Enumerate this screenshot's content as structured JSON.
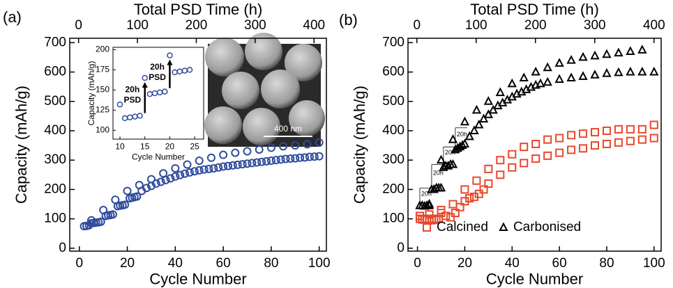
{
  "chart_data": [
    {
      "type": "scatter",
      "panel_label": "(a)",
      "xlabel": "Cycle Number",
      "ylabel": "Capacity (mAh/g)",
      "x2label": "Total PSD Time (h)",
      "xlim": [
        -4,
        103
      ],
      "xticks": [
        0,
        20,
        40,
        60,
        80,
        100
      ],
      "ylim": [
        -10,
        715
      ],
      "yticks": [
        0,
        100,
        200,
        300,
        400,
        500,
        600,
        700
      ],
      "x2lim": [
        -15,
        421
      ],
      "x2ticks": [
        0,
        100,
        200,
        300,
        400
      ],
      "series": [
        {
          "color": "#2f4b9c",
          "marker": "circle",
          "x": [
            2,
            3,
            4,
            5,
            6,
            7,
            8,
            9,
            11,
            12,
            13,
            14,
            16,
            17,
            18,
            19,
            21,
            22,
            23,
            24,
            26,
            28,
            30,
            32,
            34,
            36,
            38,
            40,
            42,
            44,
            46,
            48,
            50,
            52,
            54,
            56,
            58,
            60,
            62,
            64,
            66,
            68,
            70,
            72,
            74,
            76,
            78,
            80,
            82,
            84,
            86,
            88,
            90,
            92,
            94,
            96,
            98,
            100
          ],
          "values": [
            75,
            76,
            78,
            85,
            86,
            87,
            88,
            90,
            110,
            112,
            113,
            115,
            143,
            145,
            146,
            148,
            170,
            172,
            174,
            176,
            195,
            205,
            212,
            220,
            226,
            232,
            238,
            244,
            249,
            254,
            258,
            262,
            265,
            268,
            270,
            272,
            275,
            278,
            280,
            282,
            284,
            286,
            288,
            290,
            292,
            294,
            296,
            298,
            300,
            302,
            304,
            305,
            306,
            308,
            309,
            311,
            312,
            313
          ]
        },
        {
          "color": "#2f4b9c",
          "marker": "circle",
          "x": [
            5,
            10,
            15,
            20,
            25,
            30,
            35,
            40,
            45,
            50,
            55,
            60,
            65,
            70,
            75,
            80,
            85,
            90,
            95,
            100
          ],
          "values": [
            95,
            130,
            165,
            195,
            215,
            235,
            255,
            272,
            285,
            298,
            308,
            318,
            325,
            330,
            336,
            342,
            347,
            350,
            354,
            360
          ]
        }
      ],
      "inset": {
        "type": "scatter",
        "xlabel": "Cycle Number",
        "ylabel": "Capacity (mAh/g)",
        "xlim": [
          8.6,
          26.8
        ],
        "xticks": [
          10,
          15,
          20,
          25
        ],
        "ylim": [
          89,
          203
        ],
        "yticks": [
          100,
          125,
          150,
          175,
          200
        ],
        "series": [
          {
            "color": "#2f4b9c",
            "marker": "circle",
            "x": [
              10,
              11,
              12,
              13,
              14,
              15,
              16,
              17,
              18,
              19,
              20,
              21,
              22,
              23,
              24
            ],
            "values": [
              132,
              115,
              116,
              117,
              118,
              165,
              145,
              146,
              147,
              148,
              193,
              172,
              173,
              174,
              175
            ]
          }
        ],
        "annotations": [
          [
            "20h",
            "PSD"
          ],
          [
            "20h",
            "PSD"
          ]
        ]
      },
      "scale_bar_label": "400 nm"
    },
    {
      "type": "scatter",
      "panel_label": "(b)",
      "xlabel": "Cycle Number",
      "ylabel": "Capacity (mAh/g)",
      "x2label": "Total PSD Time (h)",
      "xlim": [
        -4,
        103
      ],
      "xticks": [
        0,
        20,
        40,
        60,
        80,
        100
      ],
      "ylim": [
        -10,
        715
      ],
      "yticks": [
        0,
        100,
        200,
        300,
        400,
        500,
        600,
        700
      ],
      "x2lim": [
        -15,
        412
      ],
      "x2ticks": [
        0,
        100,
        200,
        300,
        400
      ],
      "legend": "lower center",
      "series": [
        {
          "name": "Calcined",
          "color": "#e8472b",
          "marker": "square",
          "x": [
            1,
            2,
            3,
            4,
            5,
            6,
            7,
            8,
            9,
            10,
            12,
            14,
            16,
            18,
            20,
            22,
            24,
            26,
            28,
            30,
            35,
            40,
            45,
            50,
            55,
            60,
            65,
            70,
            75,
            80,
            85,
            90,
            95,
            100
          ],
          "values": [
            100,
            98,
            97,
            100,
            100,
            95,
            97,
            100,
            100,
            120,
            110,
            105,
            120,
            140,
            160,
            170,
            175,
            185,
            200,
            220,
            250,
            275,
            290,
            305,
            315,
            325,
            335,
            340,
            350,
            355,
            360,
            365,
            370,
            375
          ]
        },
        {
          "color": "#e8472b",
          "marker": "square",
          "x": [
            1,
            5,
            10,
            15,
            20,
            25,
            30,
            35,
            40,
            45,
            50,
            55,
            60,
            65,
            70,
            75,
            80,
            85,
            90,
            95,
            100
          ],
          "values": [
            110,
            115,
            130,
            150,
            200,
            230,
            270,
            300,
            320,
            345,
            355,
            370,
            375,
            385,
            390,
            395,
            400,
            405,
            405,
            405,
            420
          ]
        },
        {
          "name": "Carbonised",
          "color": "#000000",
          "marker": "triangle",
          "x": [
            1,
            2,
            3,
            4,
            5,
            6,
            7,
            8,
            9,
            10,
            11,
            12,
            13,
            14,
            15,
            16,
            17,
            18,
            19,
            20,
            22,
            24,
            26,
            28,
            30,
            32,
            34,
            36,
            38,
            40,
            42,
            44,
            46,
            48,
            50,
            52,
            55,
            60,
            65,
            70,
            75,
            80,
            85,
            90,
            95,
            100
          ],
          "values": [
            145,
            145,
            143,
            145,
            145,
            200,
            200,
            205,
            205,
            205,
            275,
            280,
            280,
            285,
            285,
            335,
            340,
            345,
            350,
            355,
            380,
            400,
            420,
            440,
            455,
            470,
            485,
            495,
            505,
            515,
            525,
            532,
            540,
            548,
            555,
            560,
            565,
            575,
            580,
            585,
            590,
            595,
            598,
            600,
            600,
            600
          ]
        },
        {
          "color": "#000000",
          "marker": "triangle",
          "x": [
            5,
            10,
            15,
            20,
            25,
            30,
            35,
            40,
            45,
            50,
            55,
            60,
            65,
            70,
            75,
            80,
            85,
            90,
            95
          ],
          "values": [
            150,
            300,
            370,
            430,
            470,
            500,
            530,
            560,
            580,
            600,
            615,
            630,
            640,
            650,
            655,
            660,
            665,
            670,
            675
          ]
        }
      ],
      "annotations": [
        "20h",
        "20h",
        "20h",
        "20h"
      ]
    }
  ]
}
